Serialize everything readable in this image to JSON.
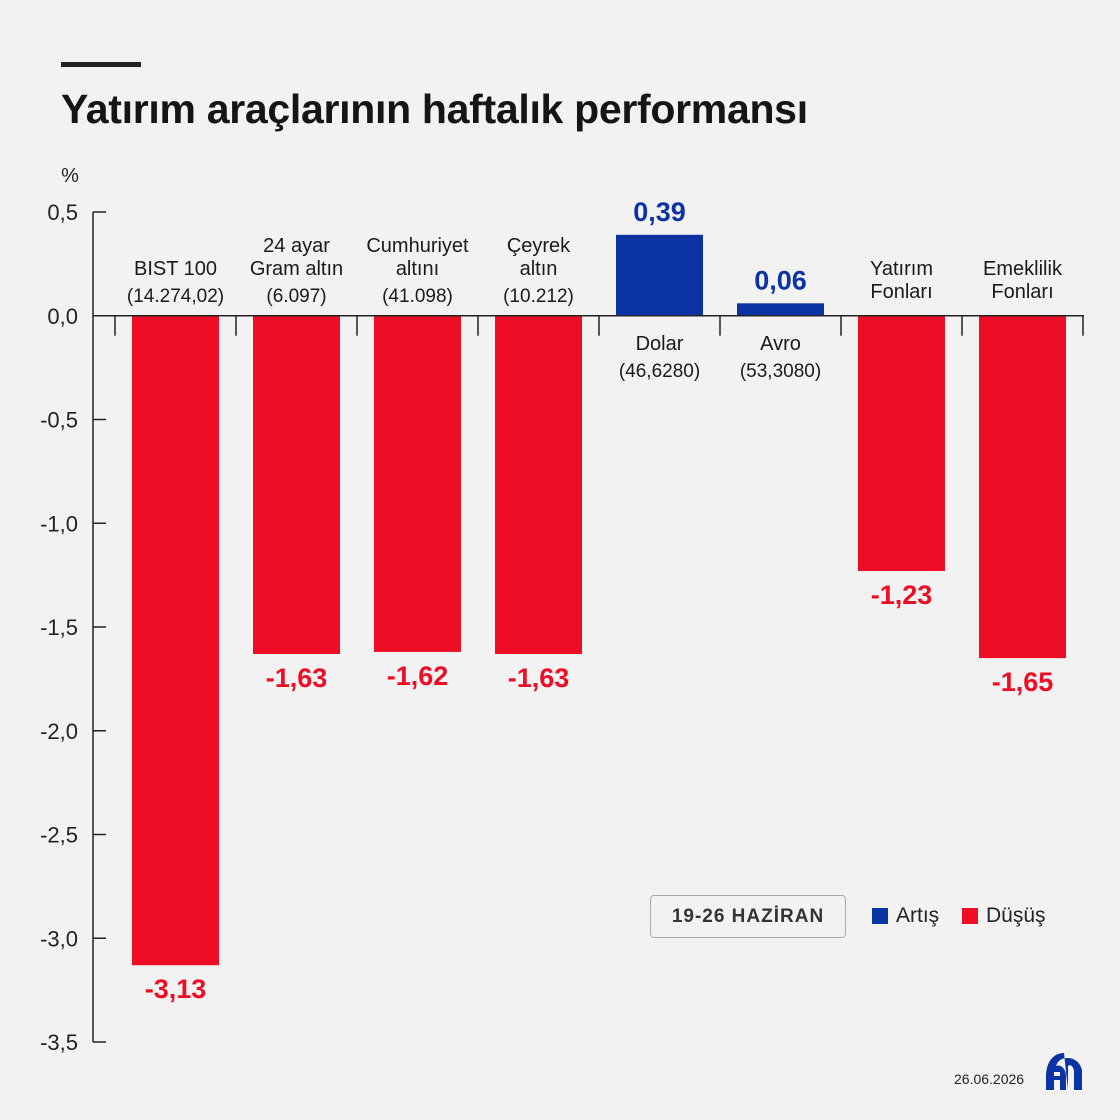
{
  "title": "Yatırım araçlarının haftalık performansı",
  "date_range": "19-26 HAZİRAN",
  "footer_date": "26.06.2026",
  "logo_text": "AA",
  "colors": {
    "increase": "#0b33a3",
    "decrease": "#ef0d25",
    "text": "#1a1a1a"
  },
  "legend": [
    {
      "label": "Artış",
      "color": "#0b33a3"
    },
    {
      "label": "Düşüş",
      "color": "#ef0d25"
    }
  ],
  "chart_data": {
    "type": "bar",
    "ylabel": "%",
    "ylim": [
      -3.5,
      0.5
    ],
    "yticks": [
      0.5,
      0.0,
      -0.5,
      -1.0,
      -1.5,
      -2.0,
      -2.5,
      -3.0,
      -3.5
    ],
    "ytick_labels": [
      "0,5",
      "0,0",
      "-0,5",
      "-1,0",
      "-1,5",
      "-2,0",
      "-2,5",
      "-3,0",
      "-3,5"
    ],
    "categories": [
      {
        "name": [
          "BIST 100"
        ],
        "price": "(14.274,02)"
      },
      {
        "name": [
          "24 ayar",
          "Gram altın"
        ],
        "price": "(6.097)"
      },
      {
        "name": [
          "Cumhuriyet",
          "altını"
        ],
        "price": "(41.098)"
      },
      {
        "name": [
          "Çeyrek",
          "altın"
        ],
        "price": "(10.212)"
      },
      {
        "name": [
          "Dolar"
        ],
        "price": "(46,6280)"
      },
      {
        "name": [
          "Avro"
        ],
        "price": "(53,3080)"
      },
      {
        "name": [
          "Yatırım",
          "Fonları"
        ],
        "price": ""
      },
      {
        "name": [
          "Emeklilik",
          "Fonları"
        ],
        "price": ""
      }
    ],
    "values": [
      -3.13,
      -1.63,
      -1.62,
      -1.63,
      0.39,
      0.06,
      -1.23,
      -1.65
    ],
    "value_labels": [
      "-3,13",
      "-1,63",
      "-1,62",
      "-1,63",
      "0,39",
      "0,06",
      "-1,23",
      "-1,65"
    ]
  }
}
